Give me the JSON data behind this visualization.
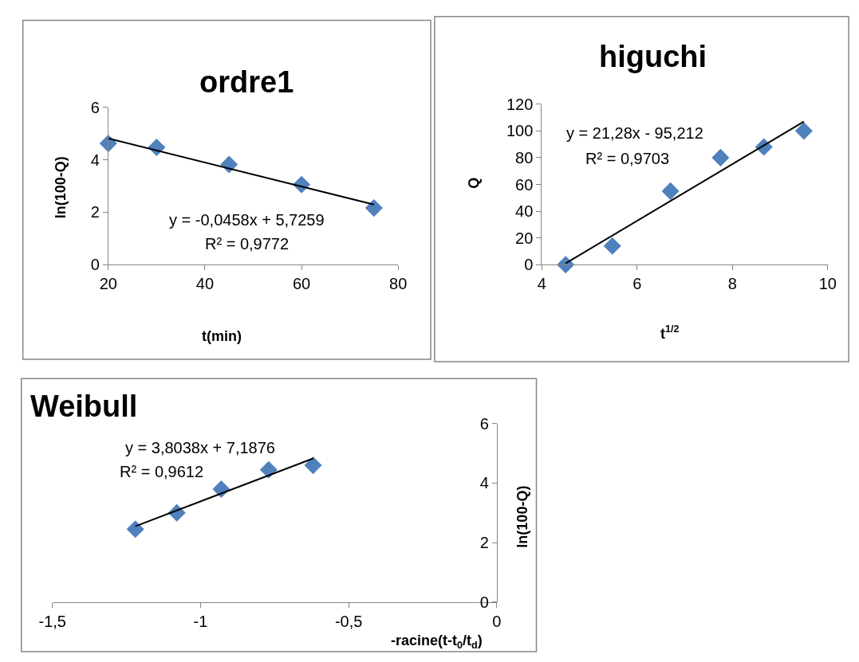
{
  "chart_data": [
    {
      "type": "scatter",
      "title": "ordre1",
      "xlabel": "t(min)",
      "ylabel": "ln(100-Q)",
      "marker": "diamond",
      "grid": false,
      "x": [
        20,
        30,
        45,
        60,
        75
      ],
      "series": [
        {
          "color": "#4f81bd",
          "values": [
            4.62,
            4.47,
            3.82,
            3.05,
            2.16
          ]
        },
        {
          "type": "line",
          "color": "#000000",
          "marker": "none",
          "x": [
            20,
            75
          ],
          "values": [
            4.81,
            2.29
          ]
        }
      ],
      "xlim": [
        20,
        80
      ],
      "xticks": [
        20,
        40,
        60,
        80
      ],
      "ylim": [
        0,
        6
      ],
      "yticks": [
        0,
        2,
        4,
        6
      ],
      "annotations": [
        "y = -0,0458x + 5,7259",
        "R² = 0,9772"
      ]
    },
    {
      "type": "scatter",
      "title": "higuchi",
      "xlabel": "t$^{1/2}$",
      "ylabel": "Q",
      "marker": "diamond",
      "grid": false,
      "x": [
        4.5,
        5.48,
        6.7,
        7.75,
        8.66,
        9.5
      ],
      "series": [
        {
          "color": "#4f81bd",
          "values": [
            0,
            14,
            55,
            80,
            88,
            100
          ]
        },
        {
          "type": "line",
          "color": "#000000",
          "marker": "none",
          "x": [
            4.5,
            9.5
          ],
          "values": [
            1,
            107
          ]
        }
      ],
      "xlim": [
        4,
        10
      ],
      "xticks": [
        4,
        6,
        8,
        10
      ],
      "ylim": [
        0,
        120
      ],
      "yticks": [
        0,
        20,
        40,
        60,
        80,
        100,
        120
      ],
      "annotations": [
        "y = 21,28x - 95,212",
        "R² = 0,9703"
      ]
    },
    {
      "type": "scatter",
      "title": "Weibull",
      "xlabel": "-racine(t-t$_{0}$/t$_{d}$)",
      "ylabel": "ln(100-Q)",
      "marker": "diamond",
      "grid": false,
      "x": [
        -1.22,
        -1.08,
        -0.93,
        -0.77,
        -0.62
      ],
      "series": [
        {
          "color": "#4f81bd",
          "values": [
            2.45,
            3.0,
            3.8,
            4.45,
            4.6
          ]
        },
        {
          "type": "line",
          "color": "#000000",
          "marker": "none",
          "x": [
            -1.22,
            -0.62
          ],
          "values": [
            2.55,
            4.83
          ]
        }
      ],
      "xlim": [
        -1.5,
        0
      ],
      "xticks": [
        {
          "value": -1.5,
          "label": "-1,5"
        },
        -1,
        {
          "value": -0.5,
          "label": "-0,5"
        },
        0
      ],
      "ylim": [
        0,
        6
      ],
      "yticks": [
        0,
        2,
        4,
        6
      ],
      "annotations": [
        "y = 3,8038x + 7,1876",
        "R² = 0,9612"
      ]
    }
  ]
}
